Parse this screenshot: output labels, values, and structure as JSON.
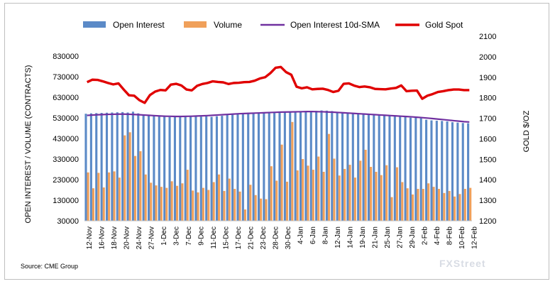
{
  "source": "Source: CME Group",
  "watermark": "FXStreet",
  "chart_data": {
    "type": "bar",
    "legend_position": "top",
    "grid": false,
    "colors": {
      "open_interest": "#5b8ac7",
      "volume": "#f0a05a",
      "sma": "#7030a0",
      "gold": "#e00000"
    },
    "y_left": {
      "label": "OPEN INTEREST / VOLUME (CONTRACTS)",
      "ticks": [
        "830000",
        "730000",
        "630000",
        "530000",
        "430000",
        "330000",
        "230000",
        "130000",
        "30000"
      ],
      "range": [
        30000,
        830000
      ]
    },
    "y_right": {
      "label": "GOLD $/OZ",
      "ticks": [
        "2100",
        "2000",
        "1900",
        "1800",
        "1700",
        "1600",
        "1500",
        "1400",
        "1300",
        "1200"
      ],
      "range": [
        1200,
        2100
      ]
    },
    "x_tick_labels": [
      "12-Nov",
      "16-Nov",
      "18-Nov",
      "20-Nov",
      "24-Nov",
      "27-Nov",
      "1-Dec",
      "3-Dec",
      "7-Dec",
      "9-Dec",
      "11-Dec",
      "15-Dec",
      "17-Dec",
      "21-Dec",
      "23-Dec",
      "28-Dec",
      "30-Dec",
      "4-Jan",
      "6-Jan",
      "8-Jan",
      "12-Jan",
      "14-Jan",
      "19-Jan",
      "21-Jan",
      "25-Jan",
      "27-Jan",
      "29-Jan",
      "2-Feb",
      "4-Feb",
      "8-Feb",
      "10-Feb",
      "12-Feb"
    ],
    "series": [
      {
        "name": "Open Interest",
        "type": "bar",
        "values": [
          550000,
          552000,
          553000,
          554000,
          555000,
          556000,
          557000,
          558000,
          556000,
          560000,
          552000,
          547000,
          543000,
          541000,
          538000,
          536000,
          534000,
          535000,
          536000,
          537000,
          540000,
          538000,
          536000,
          537000,
          535000,
          538000,
          540000,
          545000,
          549000,
          552000,
          553000,
          555000,
          554000,
          552000,
          555000,
          556000,
          557000,
          560000,
          558000,
          557000,
          558000,
          560000,
          562000,
          563000,
          564000,
          566000,
          565000,
          563000,
          556000,
          553000,
          552000,
          552000,
          551000,
          550000,
          548000,
          546000,
          545000,
          542000,
          540000,
          538000,
          537000,
          534000,
          531000,
          530000,
          528000,
          521000,
          518000,
          516000,
          515000,
          513000,
          509000,
          507000,
          505000,
          504000
        ]
      },
      {
        "name": "Volume",
        "type": "bar",
        "values": [
          265000,
          188000,
          263000,
          192000,
          265000,
          270000,
          240000,
          445000,
          460000,
          345000,
          368000,
          255000,
          215000,
          202000,
          195000,
          190000,
          222000,
          200000,
          212000,
          278000,
          177000,
          168000,
          190000,
          180000,
          218000,
          255000,
          175000,
          235000,
          185000,
          172000,
          85000,
          205000,
          155000,
          138000,
          135000,
          295000,
          225000,
          400000,
          220000,
          510000,
          275000,
          330000,
          298000,
          278000,
          342000,
          268000,
          452000,
          332000,
          250000,
          282000,
          302000,
          240000,
          322000,
          375000,
          292000,
          268000,
          252000,
          300000,
          145000,
          290000,
          218000,
          188000,
          158000,
          185000,
          185000,
          212000,
          195000,
          185000,
          165000,
          175000,
          148000,
          160000,
          185000,
          190000
        ]
      },
      {
        "name": "Open Interest 10d-SMA",
        "type": "line",
        "values": [
          542000,
          543500,
          545000,
          546000,
          547000,
          547500,
          548000,
          548000,
          547500,
          546500,
          545000,
          543500,
          542000,
          540500,
          539000,
          538000,
          537500,
          537000,
          537000,
          537500,
          538000,
          539000,
          540000,
          541000,
          542500,
          544000,
          545500,
          547000,
          548500,
          550000,
          551000,
          552000,
          553000,
          554000,
          555000,
          556000,
          557000,
          558000,
          558500,
          559000,
          559500,
          560000,
          560500,
          560500,
          560000,
          559500,
          558500,
          557500,
          556000,
          554500,
          553000,
          551500,
          550000,
          548500,
          547000,
          545500,
          544000,
          542500,
          541000,
          539500,
          538000,
          536500,
          535000,
          533000,
          531000,
          529000,
          526500,
          524000,
          521500,
          519000,
          516500,
          514000,
          511500,
          510000
        ]
      },
      {
        "name": "Gold Spot",
        "type": "line",
        "axis": "right",
        "values": [
          1876,
          1888,
          1887,
          1880,
          1872,
          1865,
          1870,
          1840,
          1812,
          1810,
          1788,
          1775,
          1813,
          1830,
          1838,
          1836,
          1864,
          1868,
          1860,
          1840,
          1836,
          1858,
          1867,
          1872,
          1880,
          1877,
          1875,
          1867,
          1872,
          1873,
          1876,
          1877,
          1883,
          1894,
          1900,
          1920,
          1946,
          1950,
          1925,
          1912,
          1854,
          1846,
          1851,
          1841,
          1843,
          1844,
          1838,
          1828,
          1834,
          1868,
          1870,
          1859,
          1852,
          1855,
          1851,
          1843,
          1842,
          1841,
          1845,
          1848,
          1860,
          1832,
          1834,
          1835,
          1795,
          1810,
          1818,
          1828,
          1832,
          1837,
          1840,
          1840,
          1837,
          1837
        ]
      }
    ]
  }
}
